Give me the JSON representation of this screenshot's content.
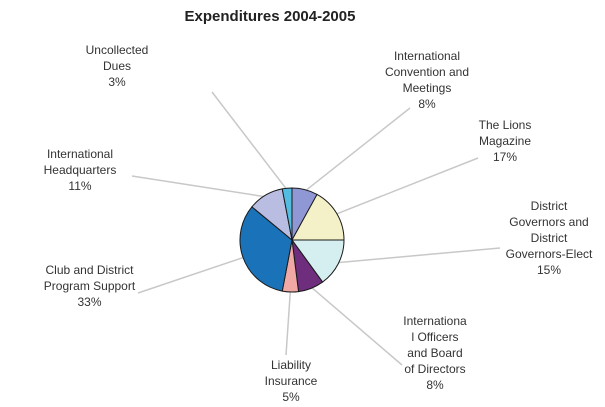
{
  "chart_data": {
    "type": "pie",
    "title": "Expenditures 2004-2005",
    "slices": [
      {
        "lines": [
          "International",
          "Convention and",
          "Meetings"
        ],
        "value": 8,
        "pct_label": "8%",
        "color": "#8f97d4"
      },
      {
        "lines": [
          "The Lions",
          "Magazine"
        ],
        "value": 17,
        "pct_label": "17%",
        "color": "#f4f1c8"
      },
      {
        "lines": [
          "District",
          "Governors and",
          "District",
          "Governors-Elect"
        ],
        "value": 15,
        "pct_label": "15%",
        "color": "#d5eef0"
      },
      {
        "lines": [
          "Internationa",
          "l Officers",
          "and Board",
          "of Directors"
        ],
        "value": 8,
        "pct_label": "8%",
        "color": "#6f2d7d"
      },
      {
        "lines": [
          "Liability",
          "Insurance"
        ],
        "value": 5,
        "pct_label": "5%",
        "color": "#f1a9a5"
      },
      {
        "lines": [
          "Club and District",
          "Program Support"
        ],
        "value": 33,
        "pct_label": "33%",
        "color": "#1a72b8"
      },
      {
        "lines": [
          "International",
          "Headquarters"
        ],
        "value": 11,
        "pct_label": "11%",
        "color": "#b9bde2"
      },
      {
        "lines": [
          "Uncollected",
          "Dues"
        ],
        "value": 3,
        "pct_label": "3%",
        "color": "#52bde0"
      }
    ]
  }
}
